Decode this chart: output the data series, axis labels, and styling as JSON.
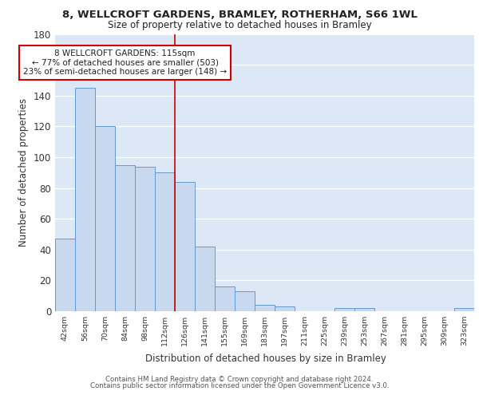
{
  "title1": "8, WELLCROFT GARDENS, BRAMLEY, ROTHERHAM, S66 1WL",
  "title2": "Size of property relative to detached houses in Bramley",
  "xlabel": "Distribution of detached houses by size in Bramley",
  "ylabel": "Number of detached properties",
  "categories": [
    "42sqm",
    "56sqm",
    "70sqm",
    "84sqm",
    "98sqm",
    "112sqm",
    "126sqm",
    "141sqm",
    "155sqm",
    "169sqm",
    "183sqm",
    "197sqm",
    "211sqm",
    "225sqm",
    "239sqm",
    "253sqm",
    "267sqm",
    "281sqm",
    "295sqm",
    "309sqm",
    "323sqm"
  ],
  "values": [
    47,
    145,
    120,
    95,
    94,
    90,
    84,
    42,
    16,
    13,
    4,
    3,
    0,
    0,
    2,
    2,
    0,
    0,
    0,
    0,
    2
  ],
  "bar_color": "#c8d8ef",
  "bar_edge_color": "#6699cc",
  "background_color": "#dce8f5",
  "grid_color": "#ffffff",
  "red_line_x": 5.5,
  "annotation_line1": "8 WELLCROFT GARDENS: 115sqm",
  "annotation_line2": "← 77% of detached houses are smaller (503)",
  "annotation_line3": "23% of semi-detached houses are larger (148) →",
  "annotation_box_color": "#ffffff",
  "annotation_box_edge": "#cc0000",
  "footer1": "Contains HM Land Registry data © Crown copyright and database right 2024.",
  "footer2": "Contains public sector information licensed under the Open Government Licence v3.0.",
  "ylim": [
    0,
    180
  ],
  "yticks": [
    0,
    20,
    40,
    60,
    80,
    100,
    120,
    140,
    160,
    180
  ]
}
